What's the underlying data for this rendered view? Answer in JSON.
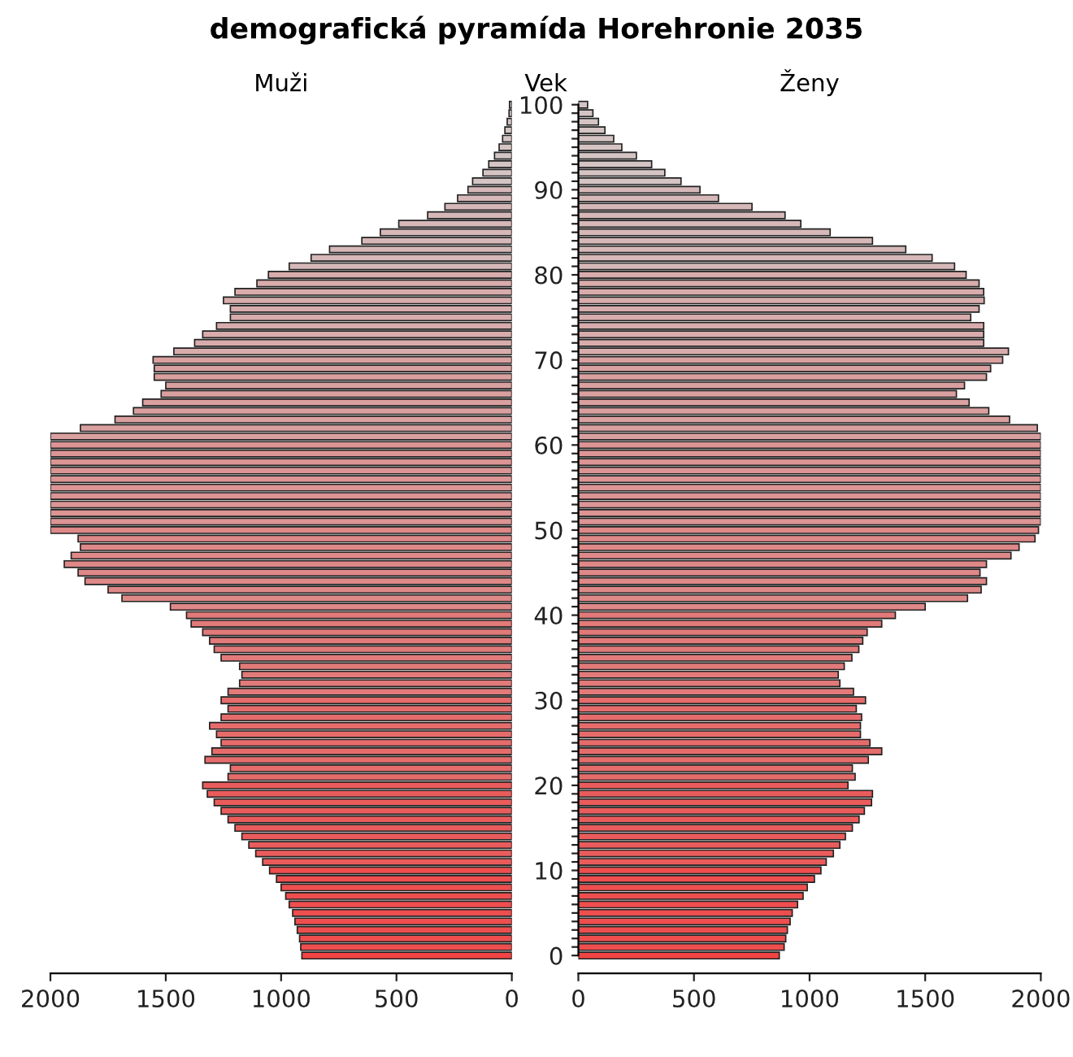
{
  "chart_data": [
    {
      "type": "bar",
      "orientation": "horizontal",
      "title": "demografická pyramída Horehronie 2035",
      "subtitle": "Muži",
      "tick_labels": "x",
      "categories": [
        "100",
        null,
        null,
        null,
        null,
        null,
        null,
        null,
        null,
        null,
        "90",
        null,
        null,
        null,
        null,
        null,
        null,
        null,
        null,
        null,
        "80",
        null,
        null,
        null,
        null,
        null,
        null,
        null,
        null,
        null,
        "70",
        null,
        null,
        null,
        null,
        null,
        null,
        null,
        null,
        null,
        "60",
        null,
        null,
        null,
        null,
        null,
        null,
        null,
        null,
        null,
        "50",
        null,
        null,
        null,
        null,
        null,
        null,
        null,
        null,
        null,
        "40",
        null,
        null,
        null,
        null,
        null,
        null,
        null,
        null,
        null,
        "30",
        null,
        null,
        null,
        null,
        null,
        null,
        null,
        null,
        null,
        "20",
        null,
        null,
        null,
        null,
        null,
        null,
        null,
        null,
        null,
        "10",
        null,
        null,
        null,
        null,
        null,
        null,
        null,
        null,
        null,
        "0"
      ],
      "values": [
        10,
        12,
        20,
        30,
        40,
        55,
        75,
        100,
        125,
        170,
        190,
        235,
        290,
        365,
        490,
        570,
        650,
        790,
        870,
        965,
        1055,
        1105,
        1200,
        1250,
        1220,
        1220,
        1280,
        1340,
        1375,
        1465,
        1555,
        1550,
        1550,
        1500,
        1520,
        1600,
        1640,
        1720,
        1870,
        2000,
        2000,
        2000,
        2000,
        2000,
        2000,
        2000,
        2000,
        2000,
        2000,
        2000,
        2000,
        1880,
        1870,
        1910,
        1940,
        1880,
        1850,
        1750,
        1690,
        1480,
        1410,
        1390,
        1340,
        1310,
        1290,
        1260,
        1180,
        1170,
        1180,
        1230,
        1260,
        1230,
        1260,
        1310,
        1280,
        1260,
        1300,
        1330,
        1220,
        1230,
        1340,
        1320,
        1290,
        1260,
        1230,
        1200,
        1170,
        1140,
        1110,
        1080,
        1050,
        1020,
        1000,
        980,
        965,
        950,
        940,
        930,
        920,
        915,
        910
      ],
      "colors": [
        "#d4c4c4",
        "#d4c4c4",
        "#d4c4c4",
        "#d4c4c4",
        "#d4c4c4",
        "#d4c4c4",
        "#d4c4c4",
        "#d4c4c4",
        "#d4c4c4",
        "#d4c4c4",
        "#d6b8b8",
        "#d6b8b8",
        "#d6b8b8",
        "#d6b8b8",
        "#d6b8b8",
        "#d6b8b8",
        "#d6b8b8",
        "#d6b8b8",
        "#d6b8b8",
        "#d6b8b8",
        "#d8acac",
        "#d8acac",
        "#d8acac",
        "#d8acac",
        "#d8acac",
        "#d8acac",
        "#d8acac",
        "#d8acac",
        "#d8acac",
        "#d8acac",
        "#daa0a0",
        "#daa0a0",
        "#daa0a0",
        "#daa0a0",
        "#daa0a0",
        "#daa0a0",
        "#daa0a0",
        "#daa0a0",
        "#daa0a0",
        "#daa0a0",
        "#dc9494",
        "#dc9494",
        "#dc9494",
        "#dc9494",
        "#dc9494",
        "#dc9494",
        "#dc9494",
        "#dc9494",
        "#dc9494",
        "#dc9494",
        "#df8888",
        "#df8888",
        "#df8888",
        "#df8888",
        "#df8888",
        "#df8888",
        "#df8888",
        "#df8888",
        "#df8888",
        "#df8888",
        "#e27a7a",
        "#e27a7a",
        "#e27a7a",
        "#e27a7a",
        "#e27a7a",
        "#e27a7a",
        "#e27a7a",
        "#e27a7a",
        "#e27a7a",
        "#e27a7a",
        "#e66c6c",
        "#e66c6c",
        "#e66c6c",
        "#e66c6c",
        "#e66c6c",
        "#e66c6c",
        "#e66c6c",
        "#e66c6c",
        "#e66c6c",
        "#e66c6c",
        "#ea5c5c",
        "#ea5c5c",
        "#ea5c5c",
        "#ea5c5c",
        "#ea5c5c",
        "#ea5c5c",
        "#ea5c5c",
        "#ea5c5c",
        "#ea5c5c",
        "#ea5c5c",
        "#ee4e4e",
        "#ee4e4e",
        "#ee4e4e",
        "#ee4e4e",
        "#ee4e4e",
        "#ee4e4e",
        "#ee4e4e",
        "#ee4e4e",
        "#ee4e4e",
        "#ee4e4e",
        "#f24444"
      ],
      "xlim": [
        2000,
        0
      ],
      "xticks": [
        2000,
        1500,
        1000,
        500,
        0
      ]
    },
    {
      "type": "bar",
      "orientation": "horizontal",
      "subtitle": "Ženy",
      "ylabel": "Vek",
      "categories": [
        "100",
        null,
        null,
        null,
        null,
        null,
        null,
        null,
        null,
        null,
        "90",
        null,
        null,
        null,
        null,
        null,
        null,
        null,
        null,
        null,
        "80",
        null,
        null,
        null,
        null,
        null,
        null,
        null,
        null,
        null,
        "70",
        null,
        null,
        null,
        null,
        null,
        null,
        null,
        null,
        null,
        "60",
        null,
        null,
        null,
        null,
        null,
        null,
        null,
        null,
        null,
        "50",
        null,
        null,
        null,
        null,
        null,
        null,
        null,
        null,
        null,
        "40",
        null,
        null,
        null,
        null,
        null,
        null,
        null,
        null,
        null,
        "30",
        null,
        null,
        null,
        null,
        null,
        null,
        null,
        null,
        null,
        "20",
        null,
        null,
        null,
        null,
        null,
        null,
        null,
        null,
        null,
        "10",
        null,
        null,
        null,
        null,
        null,
        null,
        null,
        null,
        null,
        "0"
      ],
      "values": [
        40,
        63,
        87,
        115,
        153,
        188,
        251,
        317,
        374,
        444,
        526,
        606,
        751,
        894,
        962,
        1089,
        1272,
        1416,
        1530,
        1627,
        1677,
        1733,
        1753,
        1755,
        1733,
        1697,
        1753,
        1753,
        1753,
        1860,
        1835,
        1783,
        1765,
        1670,
        1635,
        1690,
        1775,
        1865,
        1985,
        2000,
        2000,
        2000,
        2000,
        2000,
        2000,
        2000,
        2000,
        2000,
        2000,
        2000,
        1990,
        1975,
        1906,
        1871,
        1765,
        1737,
        1765,
        1742,
        1683,
        1500,
        1371,
        1312,
        1249,
        1230,
        1213,
        1183,
        1150,
        1124,
        1131,
        1190,
        1242,
        1202,
        1225,
        1220,
        1220,
        1261,
        1312,
        1254,
        1185,
        1197,
        1166,
        1272,
        1268,
        1237,
        1214,
        1185,
        1155,
        1131,
        1103,
        1072,
        1049,
        1021,
        990,
        972,
        948,
        925,
        916,
        904,
        897,
        890,
        869
      ],
      "colors": [
        "#d4c4c4",
        "#d4c4c4",
        "#d4c4c4",
        "#d4c4c4",
        "#d4c4c4",
        "#d4c4c4",
        "#d4c4c4",
        "#d4c4c4",
        "#d4c4c4",
        "#d4c4c4",
        "#d6b8b8",
        "#d6b8b8",
        "#d6b8b8",
        "#d6b8b8",
        "#d6b8b8",
        "#d6b8b8",
        "#d6b8b8",
        "#d6b8b8",
        "#d6b8b8",
        "#d6b8b8",
        "#d8acac",
        "#d8acac",
        "#d8acac",
        "#d8acac",
        "#d8acac",
        "#d8acac",
        "#d8acac",
        "#d8acac",
        "#d8acac",
        "#d8acac",
        "#daa0a0",
        "#daa0a0",
        "#daa0a0",
        "#daa0a0",
        "#daa0a0",
        "#daa0a0",
        "#daa0a0",
        "#daa0a0",
        "#daa0a0",
        "#daa0a0",
        "#dc9494",
        "#dc9494",
        "#dc9494",
        "#dc9494",
        "#dc9494",
        "#dc9494",
        "#dc9494",
        "#dc9494",
        "#dc9494",
        "#dc9494",
        "#df8888",
        "#df8888",
        "#df8888",
        "#df8888",
        "#df8888",
        "#df8888",
        "#df8888",
        "#df8888",
        "#df8888",
        "#df8888",
        "#e27a7a",
        "#e27a7a",
        "#e27a7a",
        "#e27a7a",
        "#e27a7a",
        "#e27a7a",
        "#e27a7a",
        "#e27a7a",
        "#e27a7a",
        "#e27a7a",
        "#e66c6c",
        "#e66c6c",
        "#e66c6c",
        "#e66c6c",
        "#e66c6c",
        "#e66c6c",
        "#e66c6c",
        "#e66c6c",
        "#e66c6c",
        "#e66c6c",
        "#ea5c5c",
        "#ea5c5c",
        "#ea5c5c",
        "#ea5c5c",
        "#ea5c5c",
        "#ea5c5c",
        "#ea5c5c",
        "#ea5c5c",
        "#ea5c5c",
        "#ea5c5c",
        "#ee4e4e",
        "#ee4e4e",
        "#ee4e4e",
        "#ee4e4e",
        "#ee4e4e",
        "#ee4e4e",
        "#ee4e4e",
        "#ee4e4e",
        "#ee4e4e",
        "#ee4e4e",
        "#f24444"
      ],
      "xlim": [
        0,
        2000
      ],
      "xticks": [
        0,
        500,
        1000,
        1500,
        2000
      ]
    }
  ]
}
